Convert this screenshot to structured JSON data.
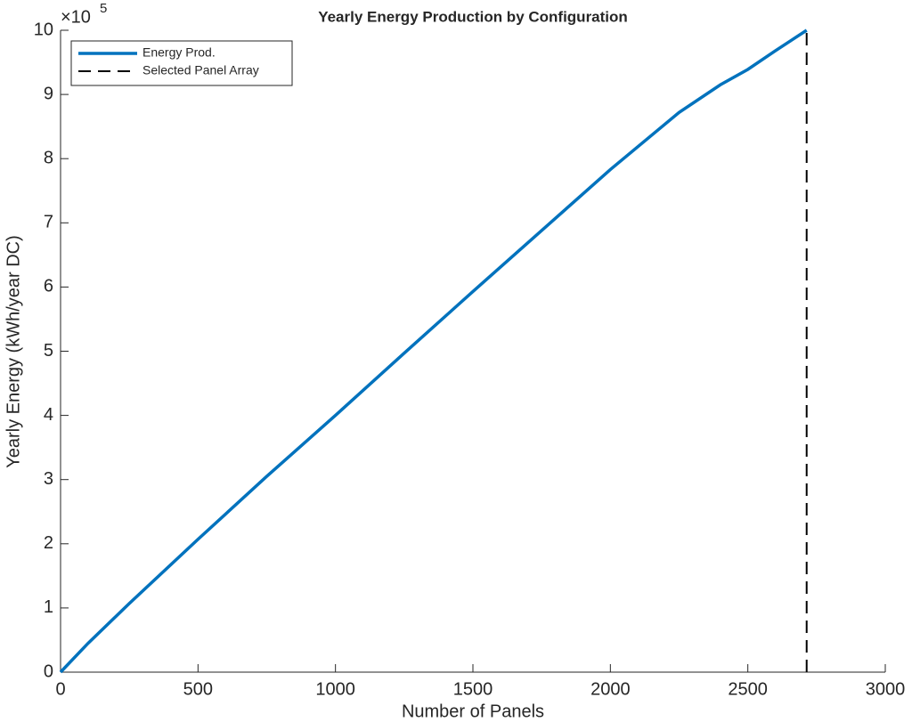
{
  "chart_data": {
    "type": "line",
    "title": "Yearly Energy Production by Configuration",
    "xlabel": "Number of Panels",
    "ylabel": "Yearly Energy (kWh/year DC)",
    "y_multiplier": {
      "base": "×10",
      "exponent": "5"
    },
    "series": [
      {
        "name": "Energy Prod.",
        "color": "#0072bd",
        "dash": false,
        "x": [
          0,
          100,
          250,
          500,
          750,
          1000,
          1250,
          1500,
          1750,
          2000,
          2250,
          2400,
          2500,
          2600,
          2714
        ],
        "values": [
          0,
          0.45,
          1.07,
          2.07,
          3.05,
          4.0,
          4.97,
          5.93,
          6.88,
          7.83,
          8.72,
          9.15,
          9.39,
          9.68,
          10.0
        ]
      },
      {
        "name": "Selected Panel Array",
        "color": "#000000",
        "dash": true,
        "x": [
          2714,
          2714
        ],
        "values": [
          0,
          10
        ]
      }
    ],
    "xlim": [
      0,
      3000
    ],
    "xticks": [
      0,
      500,
      1000,
      1500,
      2000,
      2500,
      3000
    ],
    "ylim": [
      0,
      10
    ],
    "yticks": [
      0,
      1,
      2,
      3,
      4,
      5,
      6,
      7,
      8,
      9,
      10
    ],
    "legend": "upper-left",
    "grid": false
  }
}
